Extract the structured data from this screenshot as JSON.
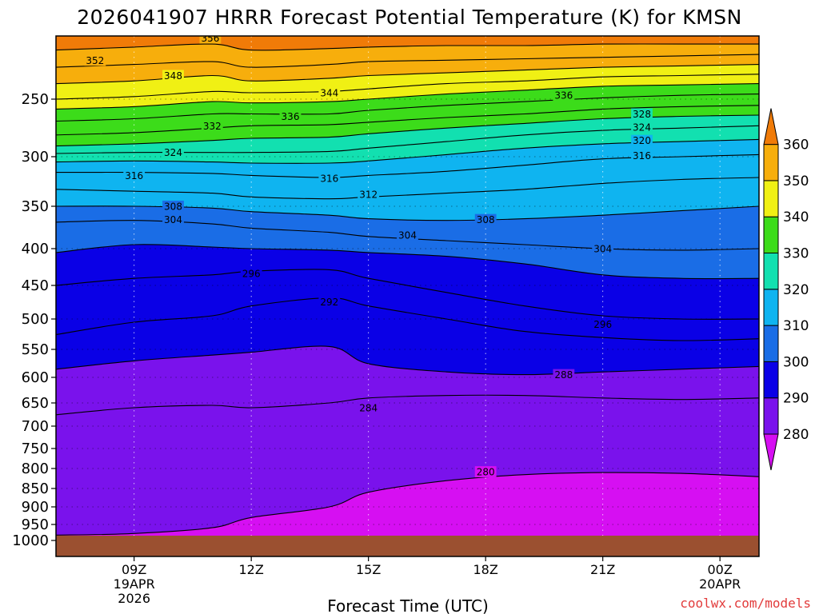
{
  "title": "2026041907 HRRR Forecast Potential Temperature (K) for KMSN",
  "x_axis_title": "Forecast Time (UTC)",
  "credit": "coolwx.com/models",
  "colors": {
    "ground": "#9b5030",
    "border": "#000000"
  },
  "chart_data": {
    "type": "heatmap",
    "title": "2026041907 HRRR Forecast Potential Temperature (K) for KMSN",
    "xlabel": "Forecast Time (UTC)",
    "ylabel": "",
    "y_scale": "log-pressure (inverted)",
    "ylim": [
      1000,
      200
    ],
    "xlim": [
      "2026-04-19 07Z",
      "2026-04-20 01Z"
    ],
    "y_ticks": [
      250,
      300,
      350,
      400,
      450,
      500,
      550,
      600,
      650,
      700,
      750,
      800,
      850,
      900,
      950,
      1000
    ],
    "x_ticks": [
      {
        "hour": 9,
        "lines": [
          "09Z",
          "19APR",
          "2026"
        ]
      },
      {
        "hour": 12,
        "lines": [
          "12Z"
        ]
      },
      {
        "hour": 15,
        "lines": [
          "15Z"
        ]
      },
      {
        "hour": 18,
        "lines": [
          "18Z"
        ]
      },
      {
        "hour": 21,
        "lines": [
          "21Z"
        ]
      },
      {
        "hour": 24,
        "lines": [
          "00Z",
          "20APR"
        ]
      }
    ],
    "grid": "dotted",
    "colorbar": {
      "ticks": [
        280,
        290,
        300,
        310,
        320,
        330,
        340,
        350,
        360
      ],
      "bins": [
        {
          "lo": 270,
          "hi": 280,
          "color": "#d60ff2"
        },
        {
          "lo": 280,
          "hi": 290,
          "color": "#7a12ec"
        },
        {
          "lo": 290,
          "hi": 300,
          "color": "#0a00e6"
        },
        {
          "lo": 300,
          "hi": 310,
          "color": "#1a6de6"
        },
        {
          "lo": 310,
          "hi": 320,
          "color": "#0fb4f0"
        },
        {
          "lo": 320,
          "hi": 330,
          "color": "#12e0b0"
        },
        {
          "lo": 330,
          "hi": 340,
          "color": "#3cdc1a"
        },
        {
          "lo": 340,
          "hi": 350,
          "color": "#f0f014"
        },
        {
          "lo": 350,
          "hi": 360,
          "color": "#f7ae0c"
        },
        {
          "lo": 360,
          "hi": 370,
          "color": "#f07b08"
        }
      ]
    },
    "isentropes": [
      {
        "theta": 280,
        "pressure": [
          983,
          978,
          960,
          930,
          900,
          860,
          830,
          815,
          810,
          812,
          820
        ]
      },
      {
        "theta": 284,
        "pressure": [
          675,
          660,
          655,
          660,
          650,
          640,
          635,
          635,
          640,
          643,
          640
        ]
      },
      {
        "theta": 288,
        "pressure": [
          585,
          570,
          560,
          555,
          545,
          575,
          590,
          595,
          590,
          585,
          580
        ]
      },
      {
        "theta": 292,
        "pressure": [
          525,
          505,
          495,
          480,
          468,
          480,
          500,
          520,
          530,
          535,
          532
        ]
      },
      {
        "theta": 296,
        "pressure": [
          450,
          440,
          435,
          430,
          428,
          440,
          460,
          480,
          495,
          500,
          500
        ]
      },
      {
        "theta": 300,
        "pressure": [
          405,
          395,
          398,
          400,
          402,
          405,
          410,
          420,
          435,
          440,
          440
        ]
      },
      {
        "theta": 304,
        "pressure": [
          368,
          366,
          370,
          375,
          380,
          385,
          390,
          395,
          400,
          402,
          400
        ]
      },
      {
        "theta": 308,
        "pressure": [
          350,
          350,
          352,
          356,
          360,
          364,
          366,
          364,
          360,
          355,
          350
        ]
      },
      {
        "theta": 312,
        "pressure": [
          332,
          334,
          336,
          340,
          342,
          340,
          336,
          332,
          326,
          322,
          320
        ]
      },
      {
        "theta": 316,
        "pressure": [
          315,
          315,
          316,
          318,
          320,
          318,
          314,
          308,
          302,
          300,
          298
        ]
      },
      {
        "theta": 320,
        "pressure": [
          305,
          304,
          305,
          306,
          306,
          304,
          298,
          292,
          288,
          286,
          284
        ]
      },
      {
        "theta": 324,
        "pressure": [
          297,
          296,
          296,
          296,
          295,
          292,
          286,
          280,
          276,
          274,
          272
        ]
      },
      {
        "theta": 328,
        "pressure": [
          290,
          288,
          285,
          283,
          282,
          279,
          274,
          270,
          266,
          264,
          263
        ]
      },
      {
        "theta": 332,
        "pressure": [
          280,
          278,
          274,
          272,
          271,
          269,
          265,
          262,
          258,
          256,
          255
        ]
      },
      {
        "theta": 336,
        "pressure": [
          268,
          266,
          262,
          262,
          262,
          259,
          255,
          252,
          249,
          247,
          246
        ]
      },
      {
        "theta": 340,
        "pressure": [
          258,
          256,
          252,
          253,
          252,
          250,
          246,
          243,
          240,
          239,
          238
        ]
      },
      {
        "theta": 344,
        "pressure": [
          250,
          248,
          244,
          245,
          244,
          242,
          238,
          236,
          233,
          232,
          231
        ]
      },
      {
        "theta": 348,
        "pressure": [
          238,
          236,
          232,
          236,
          234,
          232,
          230,
          228,
          226,
          225,
          224
        ]
      },
      {
        "theta": 352,
        "pressure": [
          226,
          224,
          222,
          226,
          224,
          222,
          221,
          220,
          219,
          218,
          217
        ]
      },
      {
        "theta": 356,
        "pressure": [
          214,
          212,
          210,
          214,
          213,
          212,
          211,
          211,
          210,
          210,
          210
        ]
      }
    ],
    "isentrope_hours": [
      7,
      9,
      11,
      12,
      14,
      15,
      17,
      19,
      21,
      23,
      25
    ],
    "contour_labels": [
      {
        "text": "356",
        "hour": 10.95,
        "pressure": 206
      },
      {
        "text": "352",
        "hour": 8.0,
        "pressure": 221
      },
      {
        "text": "348",
        "hour": 10.0,
        "pressure": 232
      },
      {
        "text": "344",
        "hour": 14.0,
        "pressure": 245
      },
      {
        "text": "336",
        "hour": 20.0,
        "pressure": 247
      },
      {
        "text": "336",
        "hour": 13.0,
        "pressure": 264
      },
      {
        "text": "332",
        "hour": 11.0,
        "pressure": 272
      },
      {
        "text": "328",
        "hour": 22.0,
        "pressure": 262
      },
      {
        "text": "324",
        "hour": 22.0,
        "pressure": 273
      },
      {
        "text": "320",
        "hour": 22.0,
        "pressure": 285
      },
      {
        "text": "316",
        "hour": 22.0,
        "pressure": 299
      },
      {
        "text": "324",
        "hour": 10.0,
        "pressure": 296
      },
      {
        "text": "316",
        "hour": 9.0,
        "pressure": 318
      },
      {
        "text": "316",
        "hour": 14.0,
        "pressure": 321
      },
      {
        "text": "312",
        "hour": 15.0,
        "pressure": 337
      },
      {
        "text": "308",
        "hour": 10.0,
        "pressure": 350
      },
      {
        "text": "304",
        "hour": 10.0,
        "pressure": 365
      },
      {
        "text": "308",
        "hour": 18.0,
        "pressure": 365
      },
      {
        "text": "304",
        "hour": 16.0,
        "pressure": 383
      },
      {
        "text": "304",
        "hour": 21.0,
        "pressure": 400
      },
      {
        "text": "296",
        "hour": 12.0,
        "pressure": 433
      },
      {
        "text": "292",
        "hour": 14.0,
        "pressure": 474
      },
      {
        "text": "296",
        "hour": 21.0,
        "pressure": 508
      },
      {
        "text": "288",
        "hour": 20.0,
        "pressure": 595
      },
      {
        "text": "284",
        "hour": 15.0,
        "pressure": 660
      },
      {
        "text": "280",
        "hour": 18.0,
        "pressure": 808
      }
    ]
  }
}
